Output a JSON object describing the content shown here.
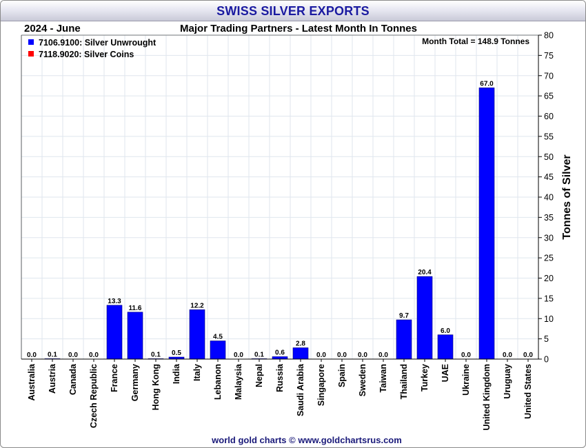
{
  "title": "SWISS SILVER EXPORTS",
  "period": "2024 - June",
  "subtitle": "Major Trading Partners - Latest Month In Tonnes",
  "month_total": "Month Total = 148.9 Tonnes",
  "footer": "world gold charts © www.goldchartsrus.com",
  "colors": {
    "unwrought": "#0000ff",
    "coins": "#ff0000",
    "title": "#1a1aa0"
  },
  "chart_data": {
    "type": "bar",
    "categories": [
      "Australia",
      "Austria",
      "Canada",
      "Czech Republic",
      "France",
      "Germany",
      "Hong Kong",
      "India",
      "Italy",
      "Lebanon",
      "Malaysia",
      "Nepal",
      "Russia",
      "Saudi Arabia",
      "Singapore",
      "Spain",
      "Sweden",
      "Taiwan",
      "Thailand",
      "Turkey",
      "UAE",
      "Ukraine",
      "United Kingdom",
      "Uruguay",
      "United States"
    ],
    "series": [
      {
        "name": "7106.9100: Silver Unwrought",
        "color": "#0000ff",
        "values": [
          0.0,
          0.1,
          0.0,
          0.0,
          13.3,
          11.6,
          0.1,
          0.5,
          12.2,
          4.5,
          0.0,
          0.1,
          0.6,
          2.8,
          0.0,
          0.0,
          0.0,
          0.0,
          9.7,
          20.4,
          6.0,
          0.0,
          67.0,
          0.0,
          0.0
        ]
      },
      {
        "name": "7118.9020: Silver Coins",
        "color": "#ff0000",
        "values": [
          0,
          0,
          0,
          0,
          0,
          0,
          0,
          0,
          0,
          0,
          0,
          0,
          0,
          0,
          0,
          0,
          0,
          0,
          0,
          0,
          0,
          0,
          0,
          0,
          0
        ]
      }
    ],
    "data_labels": [
      "0.0",
      "0.1",
      "0.0",
      "0.0",
      "13.3",
      "11.6",
      "0.1",
      "0.5",
      "12.2",
      "4.5",
      "0.0",
      "0.1",
      "0.6",
      "2.8",
      "0.0",
      "0.0",
      "0.0",
      "0.0",
      "9.7",
      "20.4",
      "6.0",
      "0.0",
      "67.0",
      "0.0",
      "0.0"
    ],
    "ylabel": "Tonnes of Silver",
    "ylim": [
      0,
      80
    ],
    "yticks": [
      0,
      5,
      10,
      15,
      20,
      25,
      30,
      35,
      40,
      45,
      50,
      55,
      60,
      65,
      70,
      75,
      80
    ],
    "grid": true,
    "legend_position": "top-left"
  }
}
